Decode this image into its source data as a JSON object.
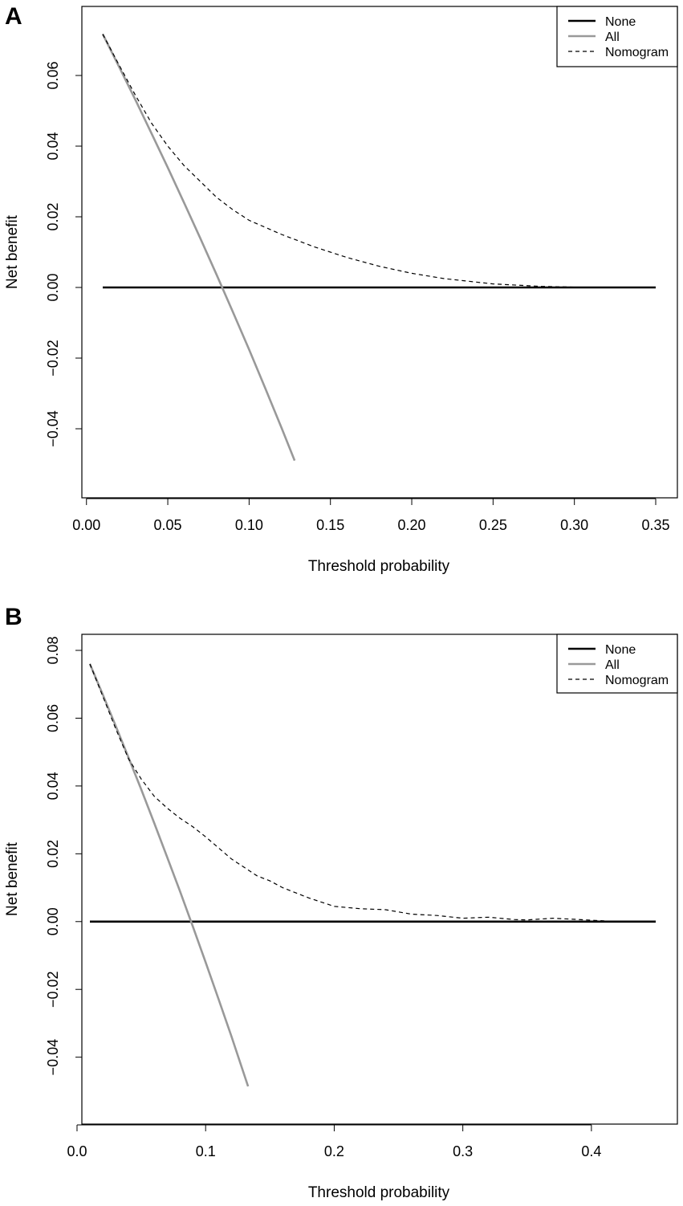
{
  "chart_data": [
    {
      "panel": "A",
      "type": "line",
      "title": "",
      "xlabel": "Threshold probability",
      "ylabel": "Net benefit",
      "xlim": [
        0.01,
        0.35
      ],
      "ylim": [
        -0.055,
        0.075
      ],
      "xticks": [
        0.0,
        0.05,
        0.1,
        0.15,
        0.2,
        0.25,
        0.3,
        0.35
      ],
      "xtick_labels": [
        "0.00",
        "0.05",
        "0.10",
        "0.15",
        "0.20",
        "0.25",
        "0.30",
        "0.35"
      ],
      "yticks": [
        -0.04,
        -0.02,
        0.0,
        0.02,
        0.04,
        0.06
      ],
      "ytick_labels": [
        "−0.04",
        "−0.02",
        "0.00",
        "0.02",
        "0.04",
        "0.06"
      ],
      "legend_position": "top-right",
      "series": [
        {
          "name": "None",
          "style": "solid",
          "color": "#000000",
          "x": [
            0.01,
            0.35
          ],
          "y": [
            0.0,
            0.0
          ]
        },
        {
          "name": "All",
          "style": "solid",
          "color": "#999999",
          "x": [
            0.01,
            0.02,
            0.03,
            0.04,
            0.05,
            0.06,
            0.07,
            0.08,
            0.09,
            0.1,
            0.11,
            0.12,
            0.128
          ],
          "y": [
            0.0717,
            0.0625,
            0.0532,
            0.0436,
            0.0339,
            0.024,
            0.0139,
            0.0036,
            -0.0069,
            -0.0176,
            -0.0286,
            -0.0398,
            -0.049
          ]
        },
        {
          "name": "Nomogram",
          "style": "dashed",
          "color": "#000000",
          "x": [
            0.01,
            0.02,
            0.03,
            0.04,
            0.05,
            0.06,
            0.07,
            0.08,
            0.09,
            0.1,
            0.12,
            0.14,
            0.16,
            0.18,
            0.2,
            0.22,
            0.25,
            0.28,
            0.3,
            0.33
          ],
          "y": [
            0.0717,
            0.063,
            0.0545,
            0.0465,
            0.04,
            0.0345,
            0.03,
            0.0255,
            0.022,
            0.019,
            0.015,
            0.0115,
            0.0085,
            0.006,
            0.004,
            0.0025,
            0.001,
            0.0003,
            0.0001,
            0.0
          ]
        }
      ]
    },
    {
      "panel": "B",
      "type": "line",
      "title": "",
      "xlabel": "Threshold probability",
      "ylabel": "Net benefit",
      "xlim": [
        0.01,
        0.45
      ],
      "ylim": [
        -0.055,
        0.08
      ],
      "xticks": [
        0.0,
        0.1,
        0.2,
        0.3,
        0.4
      ],
      "xtick_labels": [
        "0.0",
        "0.1",
        "0.2",
        "0.3",
        "0.4"
      ],
      "yticks": [
        -0.04,
        -0.02,
        0.0,
        0.02,
        0.04,
        0.06,
        0.08
      ],
      "ytick_labels": [
        "−0.04",
        "−0.02",
        "0.00",
        "0.02",
        "0.04",
        "0.06",
        "0.08"
      ],
      "legend_position": "top-right",
      "series": [
        {
          "name": "None",
          "style": "solid",
          "color": "#000000",
          "x": [
            0.01,
            0.45
          ],
          "y": [
            0.0,
            0.0
          ]
        },
        {
          "name": "All",
          "style": "solid",
          "color": "#999999",
          "x": [
            0.01,
            0.02,
            0.03,
            0.04,
            0.05,
            0.06,
            0.07,
            0.08,
            0.09,
            0.1,
            0.11,
            0.12,
            0.133
          ],
          "y": [
            0.076,
            0.067,
            0.0578,
            0.0484,
            0.0389,
            0.0291,
            0.0191,
            0.009,
            -0.0014,
            -0.012,
            -0.0228,
            -0.0338,
            -0.0486
          ]
        },
        {
          "name": "Nomogram",
          "style": "dashed",
          "color": "#000000",
          "x": [
            0.01,
            0.02,
            0.03,
            0.04,
            0.05,
            0.06,
            0.07,
            0.08,
            0.09,
            0.1,
            0.12,
            0.14,
            0.15,
            0.16,
            0.18,
            0.2,
            0.22,
            0.24,
            0.26,
            0.28,
            0.3,
            0.32,
            0.34,
            0.35,
            0.37,
            0.39,
            0.41
          ],
          "y": [
            0.076,
            0.0665,
            0.057,
            0.048,
            0.042,
            0.037,
            0.0335,
            0.0305,
            0.028,
            0.025,
            0.0185,
            0.0135,
            0.012,
            0.01,
            0.007,
            0.0045,
            0.0038,
            0.0035,
            0.0022,
            0.0018,
            0.001,
            0.0013,
            0.0006,
            0.0005,
            0.001,
            0.0006,
            0.0002
          ]
        }
      ]
    }
  ]
}
